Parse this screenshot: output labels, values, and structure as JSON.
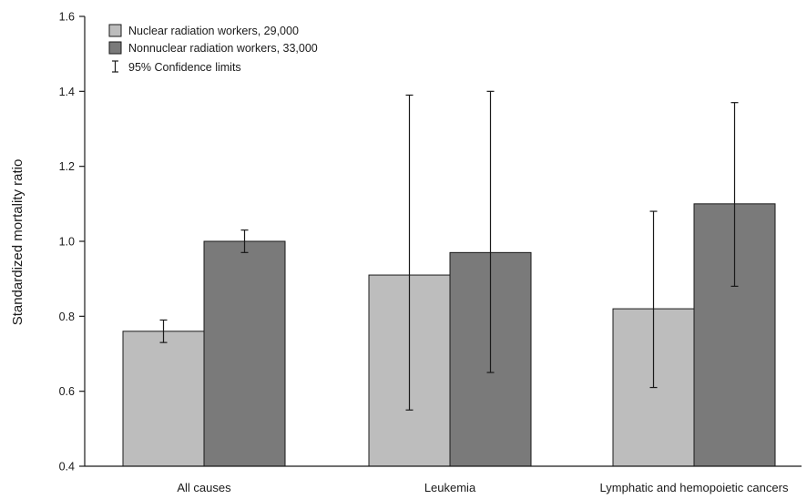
{
  "chart_data": {
    "type": "bar",
    "title": "",
    "xlabel": "",
    "ylabel": "Standardized mortality ratio",
    "ylim": [
      0.4,
      1.6
    ],
    "yticks": [
      "0.4",
      "0.6",
      "0.8",
      "1.0",
      "1.2",
      "1.4",
      "1.6"
    ],
    "categories": [
      "All causes",
      "Leukemia",
      "Lymphatic and hemopoietic cancers"
    ],
    "series": [
      {
        "name": "Nuclear radiation workers, 29,000",
        "color": "#bdbdbd",
        "values": [
          0.76,
          0.91,
          0.82
        ],
        "ci_low": [
          0.73,
          0.55,
          0.61
        ],
        "ci_high": [
          0.79,
          1.39,
          1.08
        ]
      },
      {
        "name": "Nonnuclear radiation workers, 33,000",
        "color": "#7a7a7a",
        "values": [
          1.0,
          0.97,
          1.1
        ],
        "ci_low": [
          0.97,
          0.65,
          0.88
        ],
        "ci_high": [
          1.03,
          1.4,
          1.37
        ]
      }
    ],
    "error_bar_label": "95% Confidence limits",
    "grid": false,
    "legend_position": "top-left"
  }
}
